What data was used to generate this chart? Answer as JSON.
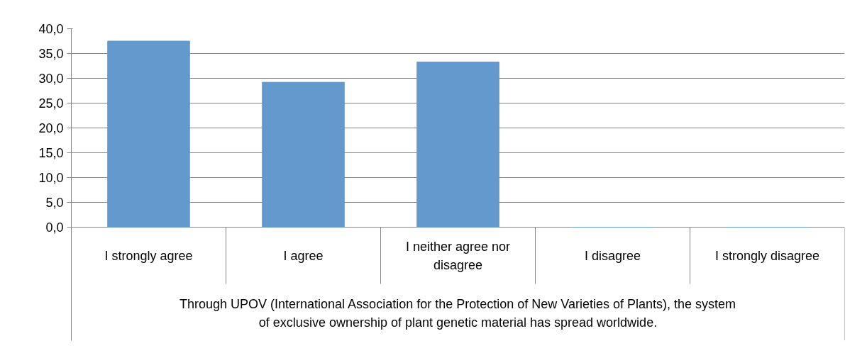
{
  "chart_data": {
    "type": "bar",
    "categories": [
      "I strongly agree",
      "I agree",
      "I neither agree nor disagree",
      "I disagree",
      "I strongly disagree"
    ],
    "values": [
      37.5,
      29.2,
      33.3,
      0,
      0
    ],
    "color": "#6399cd",
    "xlabel": "Through UPOV (International Association for the Protection of New Varieties of Plants), the system of exclusive ownership of plant genetic material has spread worldwide.",
    "ylim": [
      0,
      40
    ],
    "yticks": [
      {
        "value": 0,
        "label": "0,0"
      },
      {
        "value": 5,
        "label": "5,0"
      },
      {
        "value": 10,
        "label": "10,0"
      },
      {
        "value": 15,
        "label": "15,0"
      },
      {
        "value": 20,
        "label": "20,0"
      },
      {
        "value": 25,
        "label": "25,0"
      },
      {
        "value": 30,
        "label": "30,0"
      },
      {
        "value": 35,
        "label": "35,0"
      },
      {
        "value": 40,
        "label": "40,0"
      }
    ],
    "grid": "y"
  }
}
